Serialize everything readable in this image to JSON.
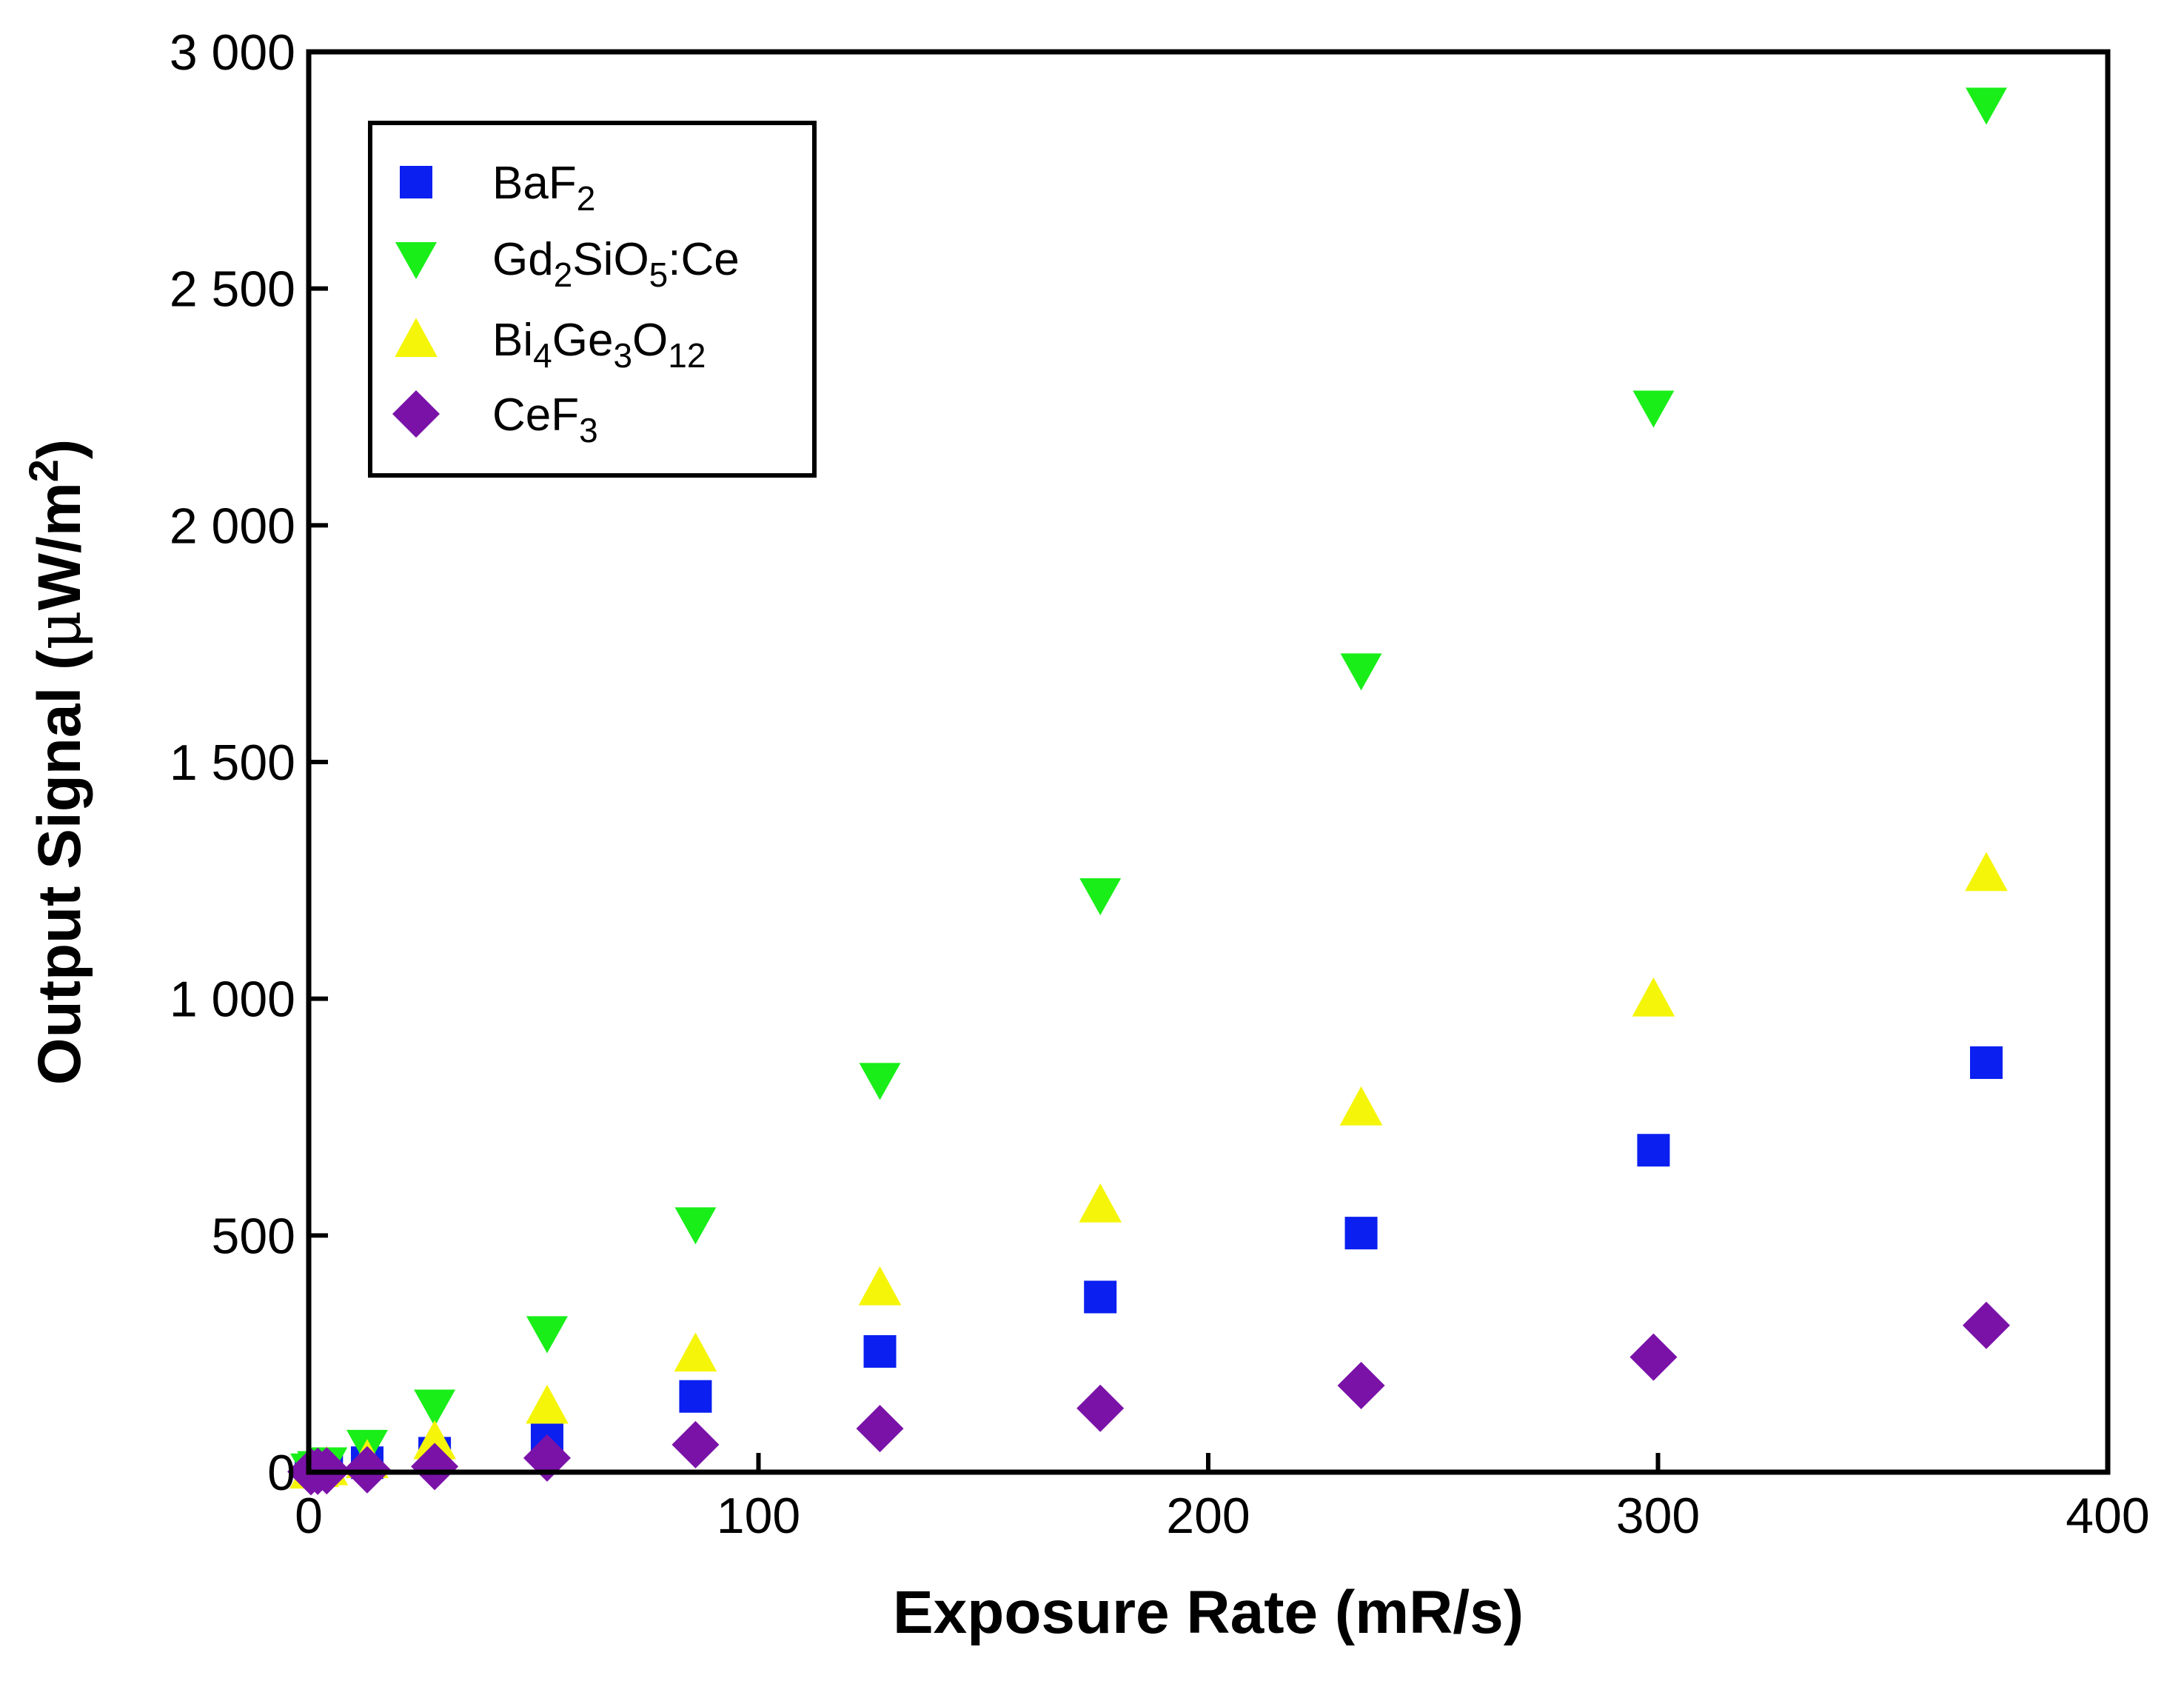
{
  "chart_data": {
    "type": "scatter",
    "xlabel": "Exposure Rate (mR/s)",
    "ylabel": {
      "text": "Output Signal (",
      "mu": "μ",
      "unit": "W/m",
      "sup": "2",
      "close": ")"
    },
    "xlim": [
      0,
      400
    ],
    "ylim": [
      0,
      3000
    ],
    "x_ticks": [
      0,
      100,
      200,
      300,
      400
    ],
    "x_tick_labels": [
      "0",
      "100",
      "200",
      "300",
      "400"
    ],
    "y_ticks": [
      0,
      500,
      1000,
      1500,
      2000,
      2500,
      3000
    ],
    "y_tick_labels": [
      "0",
      "500",
      "1 000",
      "1 500",
      "2 000",
      "2 500",
      "3 000"
    ],
    "grid": false,
    "legend_position": "top-left",
    "series": [
      {
        "name": "BaF2",
        "label_parts": [
          {
            "t": "BaF",
            "s": "n"
          },
          {
            "t": "2",
            "s": "sub"
          }
        ],
        "marker": "square",
        "color": "#0a1ff0",
        "points": [
          [
            0.5,
            3
          ],
          [
            2,
            5
          ],
          [
            4,
            8
          ],
          [
            13,
            20
          ],
          [
            28,
            40
          ],
          [
            53,
            80
          ],
          [
            86,
            160
          ],
          [
            127,
            255
          ],
          [
            176,
            370
          ],
          [
            234,
            505
          ],
          [
            299,
            680
          ],
          [
            373,
            865
          ]
        ]
      },
      {
        "name": "Gd2SiO5:Ce",
        "label_parts": [
          {
            "t": "Gd",
            "s": "n"
          },
          {
            "t": "2",
            "s": "sub"
          },
          {
            "t": "SiO",
            "s": "n"
          },
          {
            "t": "5",
            "s": "sub"
          },
          {
            "t": ":Ce",
            "s": "n"
          }
        ],
        "marker": "triangle-down",
        "color": "#19ee19",
        "points": [
          [
            0.5,
            5
          ],
          [
            2,
            10
          ],
          [
            4,
            18
          ],
          [
            13,
            55
          ],
          [
            28,
            140
          ],
          [
            53,
            295
          ],
          [
            86,
            525
          ],
          [
            127,
            830
          ],
          [
            176,
            1220
          ],
          [
            234,
            1695
          ],
          [
            299,
            2250
          ],
          [
            373,
            2890
          ]
        ]
      },
      {
        "name": "Bi4Ge3O12",
        "label_parts": [
          {
            "t": "Bi",
            "s": "n"
          },
          {
            "t": "4",
            "s": "sub"
          },
          {
            "t": "Ge",
            "s": "n"
          },
          {
            "t": "3",
            "s": "sub"
          },
          {
            "t": "O",
            "s": "n"
          },
          {
            "t": "12",
            "s": "sub"
          }
        ],
        "marker": "triangle-up",
        "color": "#f5f50a",
        "points": [
          [
            0.5,
            3
          ],
          [
            2,
            6
          ],
          [
            4,
            10
          ],
          [
            13,
            25
          ],
          [
            28,
            65
          ],
          [
            53,
            140
          ],
          [
            86,
            250
          ],
          [
            127,
            390
          ],
          [
            176,
            565
          ],
          [
            234,
            770
          ],
          [
            299,
            1000
          ],
          [
            373,
            1265
          ]
        ]
      },
      {
        "name": "CeF3",
        "label_parts": [
          {
            "t": "CeF",
            "s": "n"
          },
          {
            "t": "3",
            "s": "sub"
          }
        ],
        "marker": "diamond",
        "color": "#7a12a8",
        "points": [
          [
            0.5,
            1
          ],
          [
            2,
            2
          ],
          [
            4,
            3
          ],
          [
            13,
            5
          ],
          [
            28,
            12
          ],
          [
            53,
            30
          ],
          [
            86,
            58
          ],
          [
            127,
            92
          ],
          [
            176,
            135
          ],
          [
            234,
            183
          ],
          [
            299,
            243
          ],
          [
            373,
            310
          ]
        ]
      }
    ]
  }
}
